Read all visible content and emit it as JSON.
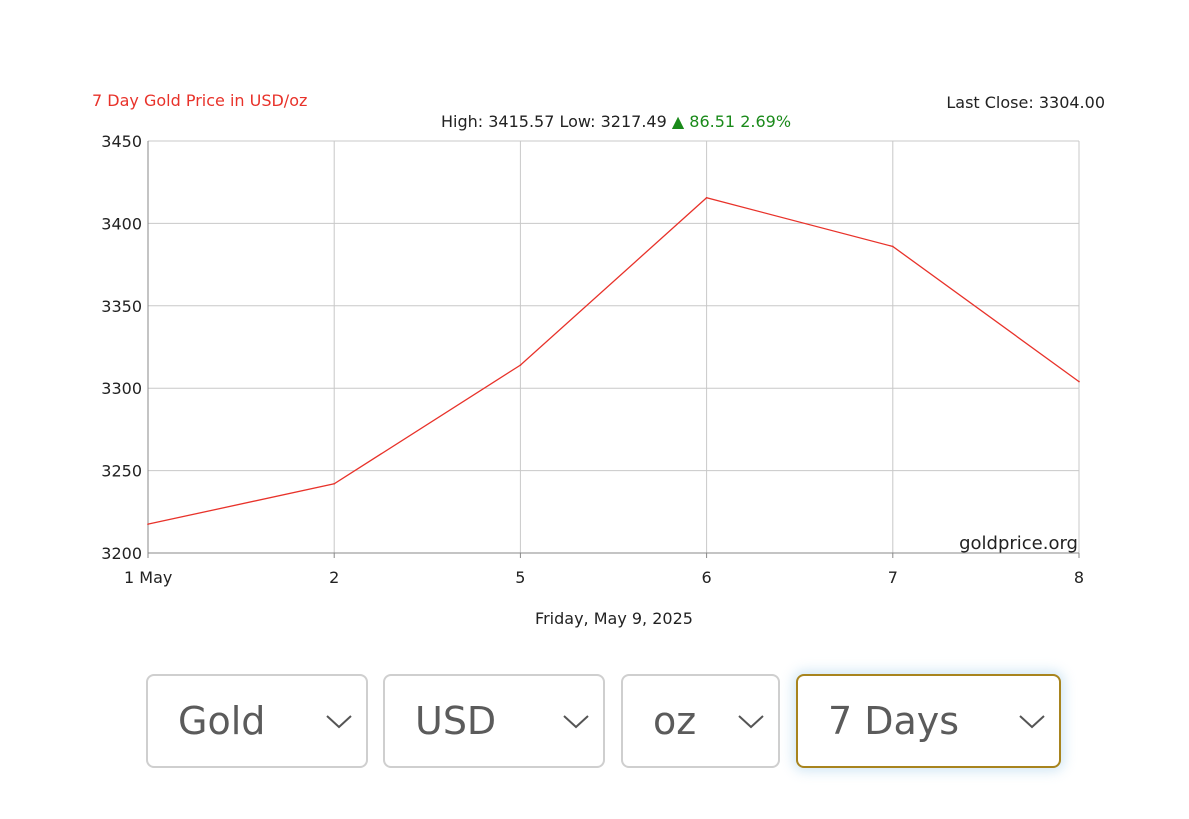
{
  "header": {
    "title": "7 Day Gold Price in USD/oz",
    "title_color": "#e8322a",
    "last_close_label": "Last Close:",
    "last_close_value": "3304.00",
    "high_label": "High:",
    "high_value": "3415.57",
    "low_label": "Low:",
    "low_value": "3217.49",
    "change_arrow": "▲",
    "change_value": "86.51",
    "change_percent": "2.69%",
    "change_color": "#1a8a1a",
    "date_label": "Friday, May 9, 2025",
    "watermark": "goldprice.org"
  },
  "chart_data": {
    "type": "line",
    "categories": [
      "1 May",
      "2",
      "5",
      "6",
      "7",
      "8"
    ],
    "series": [
      {
        "values": [
          3217.49,
          3242,
          3314,
          3415.57,
          3386,
          3304.0
        ],
        "color": "#e8322a"
      }
    ],
    "ylim": [
      3200,
      3450
    ],
    "yticks": [
      3200,
      3250,
      3300,
      3350,
      3400,
      3450
    ],
    "grid": true
  },
  "selectors": {
    "metal": "Gold",
    "currency": "USD",
    "unit": "oz",
    "range": "7 Days",
    "active_border_color": "#a8841e"
  }
}
